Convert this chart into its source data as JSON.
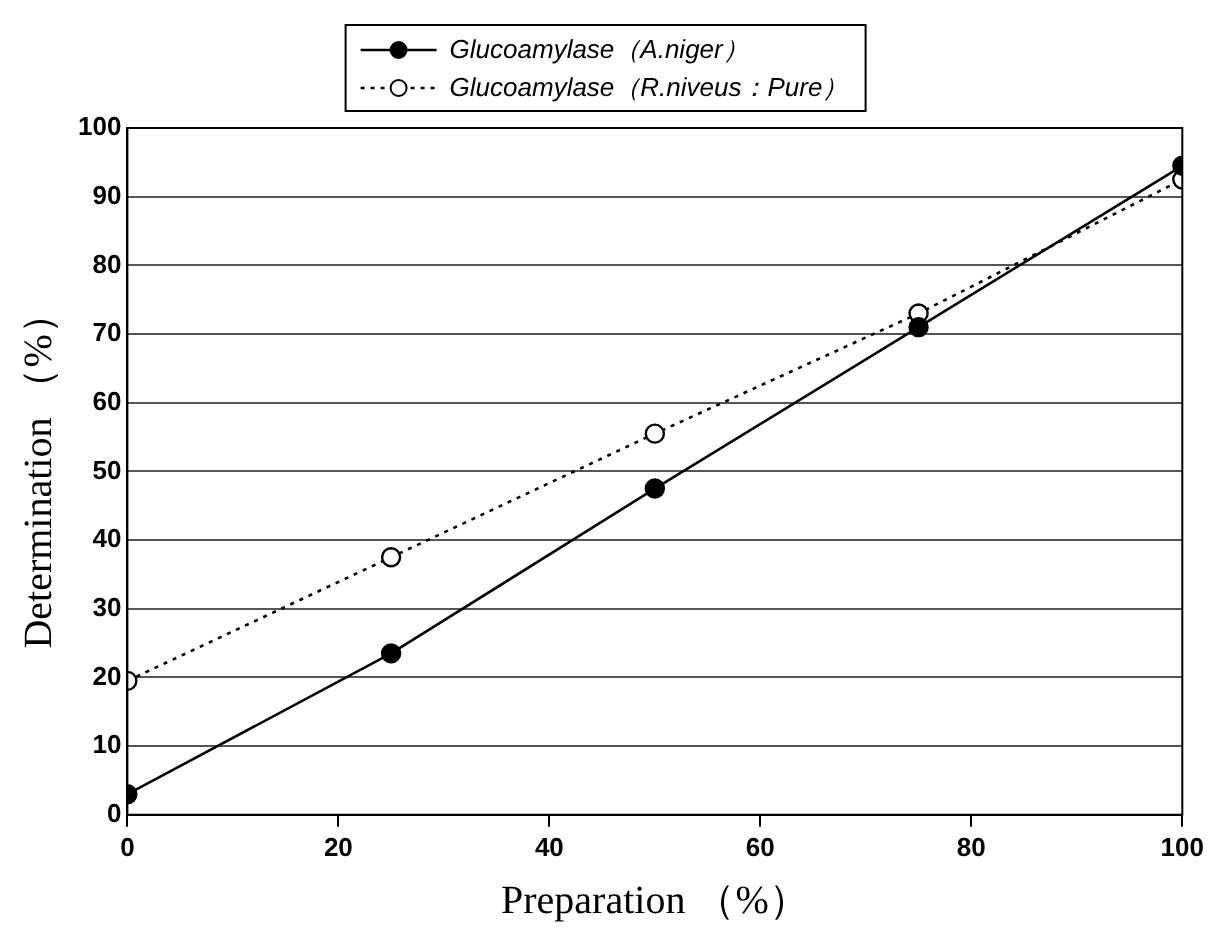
{
  "chart_data": {
    "type": "line",
    "xlabel": "Preparation （%）",
    "ylabel": "Determination （%）",
    "x": [
      0,
      25,
      50,
      75,
      100
    ],
    "series": [
      {
        "name": "Glucoamylase（A.niger）",
        "color": "#000000",
        "values": [
          3,
          23.5,
          47.5,
          71,
          94.5
        ],
        "line_style": "solid"
      },
      {
        "name": "Glucoamylase（R.niveus：Pure）",
        "color": "#000000",
        "values": [
          19.5,
          37.5,
          55.5,
          73,
          92.5
        ],
        "line_style": "dotted"
      }
    ],
    "xlim": [
      0,
      100
    ],
    "xticks": [
      0,
      20,
      40,
      60,
      80,
      100
    ],
    "ylim": [
      0,
      100
    ],
    "yticks": [
      0,
      10,
      20,
      30,
      40,
      50,
      60,
      70,
      80,
      90,
      100
    ],
    "grid": "y",
    "legend": "top",
    "marker": "circle"
  }
}
